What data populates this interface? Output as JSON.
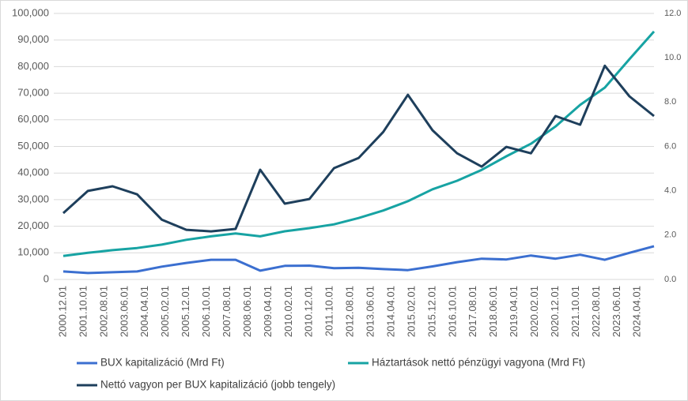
{
  "chart_data": {
    "type": "line",
    "x": [
      "2000.12.01",
      "2001.12.01",
      "2002.12.01",
      "2003.12.01",
      "2004.12.01",
      "2005.12.01",
      "2006.12.01",
      "2007.12.01",
      "2008.12.01",
      "2009.12.01",
      "2010.12.01",
      "2011.12.01",
      "2012.12.01",
      "2013.12.01",
      "2014.12.01",
      "2015.12.01",
      "2016.12.01",
      "2017.12.01",
      "2018.12.01",
      "2019.12.01",
      "2020.12.01",
      "2021.12.01",
      "2022.12.01",
      "2023.12.01",
      "2024.12.01"
    ],
    "xlim": [
      "2000.12.01",
      "2024.12.01"
    ],
    "xticks": [
      "2000.12.01",
      "2001.10.01",
      "2002.08.01",
      "2003.06.01",
      "2004.04.01",
      "2005.02.01",
      "2005.12.01",
      "2006.10.01",
      "2007.08.01",
      "2008.06.01",
      "2009.04.01",
      "2010.02.01",
      "2010.12.01",
      "2011.10.01",
      "2012.08.01",
      "2013.06.01",
      "2014.04.01",
      "2015.02.01",
      "2015.12.01",
      "2016.10.01",
      "2017.08.01",
      "2018.06.01",
      "2019.04.01",
      "2020.02.01",
      "2020.12.01",
      "2021.10.01",
      "2022.08.01",
      "2023.06.01",
      "2024.04.01"
    ],
    "ylim": [
      0,
      100000
    ],
    "yticks": [
      0,
      {
        "value": 10000,
        "label": "10,000"
      },
      {
        "value": 20000,
        "label": "20,000"
      },
      {
        "value": 30000,
        "label": "30,000"
      },
      {
        "value": 40000,
        "label": "40,000"
      },
      {
        "value": 50000,
        "label": "50,000"
      },
      {
        "value": 60000,
        "label": "60,000"
      },
      {
        "value": 70000,
        "label": "70,000"
      },
      {
        "value": 80000,
        "label": "80,000"
      },
      {
        "value": 90000,
        "label": "90,000"
      },
      {
        "value": 100000,
        "label": "100,000"
      }
    ],
    "y2lim": [
      0,
      12
    ],
    "y2ticks": [
      {
        "value": 0,
        "label": "0.0"
      },
      {
        "value": 2,
        "label": "2.0"
      },
      {
        "value": 4,
        "label": "4.0"
      },
      {
        "value": 6,
        "label": "6.0"
      },
      {
        "value": 8,
        "label": "8.0"
      },
      {
        "value": 10,
        "label": "10.0"
      },
      {
        "value": 12,
        "label": "12.0"
      }
    ],
    "grid": true,
    "legend": "bottom",
    "series": [
      {
        "name": "BUX kapitalizáció (Mrd Ft)",
        "color": "#3b6fd0",
        "values": [
          3000,
          2400,
          2700,
          3000,
          4800,
          6200,
          7400,
          7400,
          3300,
          5100,
          5200,
          4200,
          4400,
          3900,
          3500,
          4900,
          6500,
          7800,
          7500,
          9000,
          7800,
          9300,
          7400,
          10000,
          12500
        ]
      },
      {
        "name": "Háztartások nettó pénzügyi vagyona (Mrd Ft)",
        "color": "#17a3a3",
        "values": [
          8800,
          10000,
          11000,
          11800,
          13100,
          14900,
          16200,
          17300,
          16200,
          18100,
          19300,
          20700,
          23100,
          25900,
          29400,
          33900,
          37100,
          41200,
          46300,
          51000,
          57500,
          65600,
          72100,
          82800,
          93200
        ]
      },
      {
        "name": "Nettó vagyon per BUX kapitalizáció (jobb tengely)",
        "color": "#1e3f5c",
        "axis": "y2",
        "values": [
          2.99,
          3.99,
          4.2,
          3.84,
          2.7,
          2.24,
          2.17,
          2.28,
          4.95,
          3.42,
          3.63,
          5.02,
          5.48,
          6.65,
          8.33,
          6.73,
          5.69,
          5.09,
          5.98,
          5.69,
          7.37,
          6.98,
          9.64,
          8.26,
          7.37
        ]
      }
    ]
  }
}
